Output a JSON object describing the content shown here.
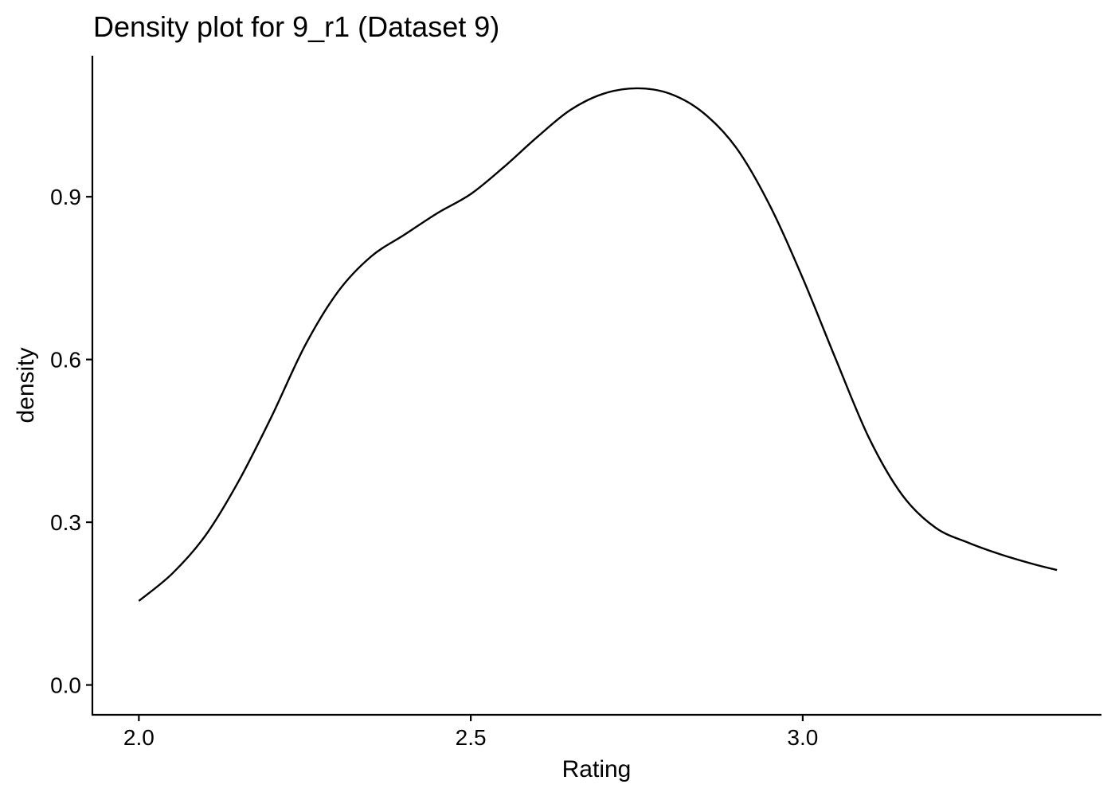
{
  "chart_data": {
    "type": "line",
    "title": "Density plot for 9_r1 (Dataset 9)",
    "xlabel": "Rating",
    "ylabel": "density",
    "xlim": [
      1.93,
      3.45
    ],
    "ylim": [
      -0.055,
      1.16
    ],
    "x_ticks": [
      2.0,
      2.5,
      3.0
    ],
    "x_tick_labels": [
      "2.0",
      "2.5",
      "3.0"
    ],
    "y_ticks": [
      0.0,
      0.3,
      0.6,
      0.9
    ],
    "y_tick_labels": [
      "0.0",
      "0.3",
      "0.6",
      "0.9"
    ],
    "grid": false,
    "legend": "none",
    "series": [
      {
        "name": "9_r1",
        "color": "#000000",
        "x": [
          2.0,
          2.05,
          2.1,
          2.15,
          2.2,
          2.25,
          2.3,
          2.35,
          2.4,
          2.45,
          2.5,
          2.55,
          2.6,
          2.65,
          2.7,
          2.75,
          2.8,
          2.85,
          2.9,
          2.95,
          3.0,
          3.05,
          3.1,
          3.15,
          3.2,
          3.25,
          3.3,
          3.35,
          3.383
        ],
        "y": [
          0.155,
          0.205,
          0.275,
          0.375,
          0.495,
          0.625,
          0.725,
          0.79,
          0.83,
          0.87,
          0.905,
          0.955,
          1.01,
          1.06,
          1.09,
          1.1,
          1.09,
          1.055,
          0.99,
          0.885,
          0.75,
          0.6,
          0.455,
          0.35,
          0.29,
          0.262,
          0.24,
          0.222,
          0.212
        ]
      }
    ]
  }
}
